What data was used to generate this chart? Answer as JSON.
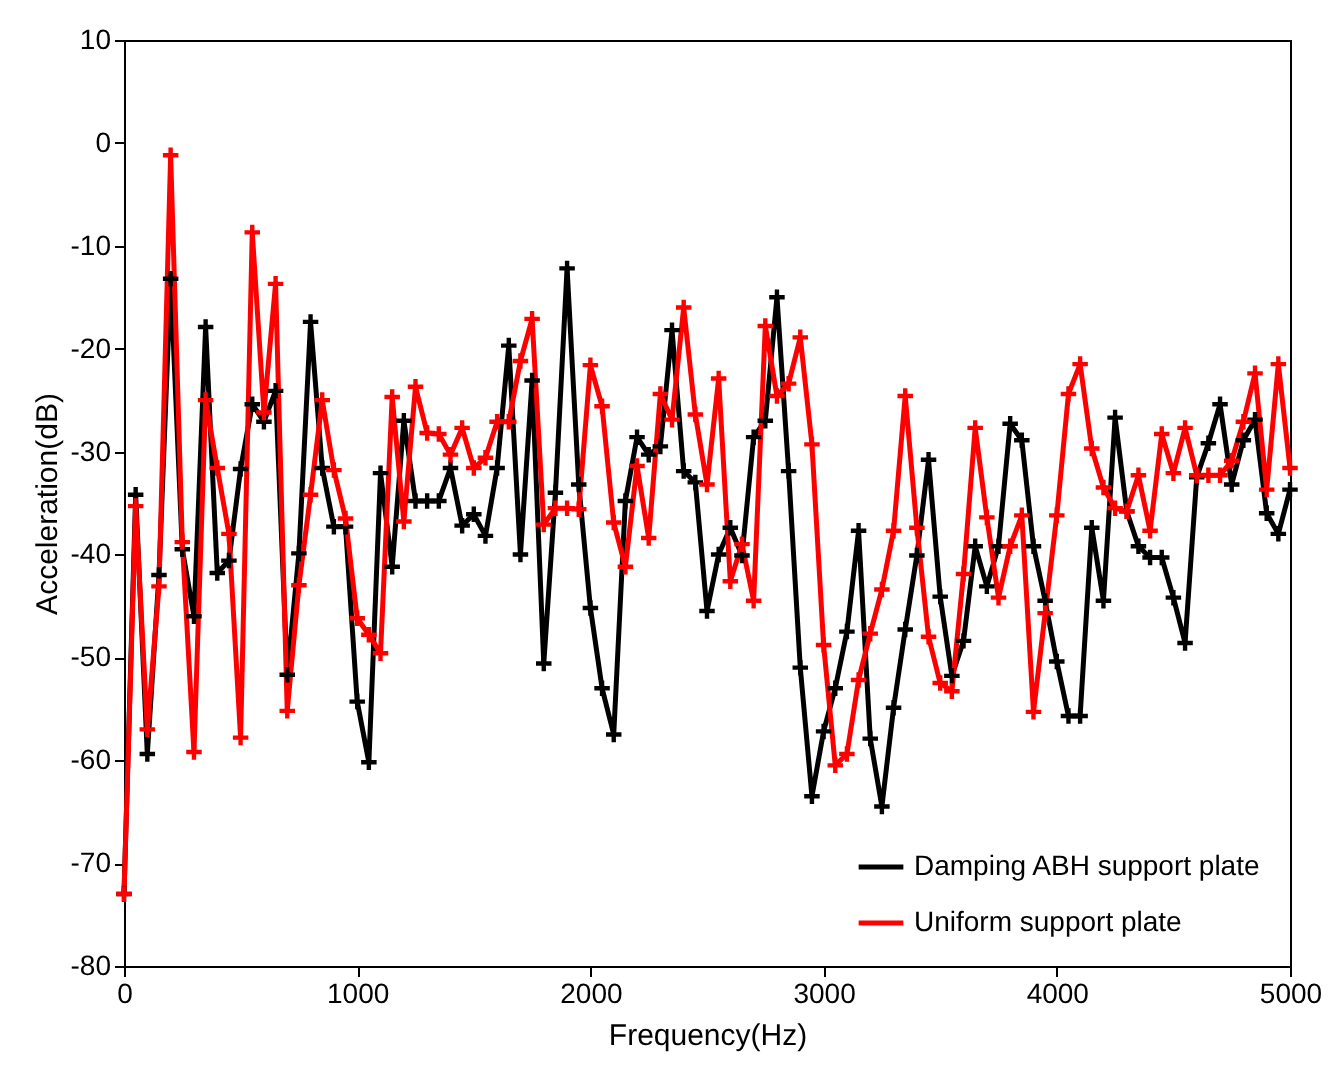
{
  "chart_data": {
    "type": "line",
    "xlabel": "Frequency(Hz)",
    "ylabel": "Acceleration(dB)",
    "x": [
      0,
      50,
      100,
      150,
      200,
      250,
      300,
      350,
      400,
      450,
      500,
      550,
      600,
      650,
      700,
      750,
      800,
      850,
      900,
      950,
      1000,
      1050,
      1100,
      1150,
      1200,
      1250,
      1300,
      1350,
      1400,
      1450,
      1500,
      1550,
      1600,
      1650,
      1700,
      1750,
      1800,
      1850,
      1900,
      1950,
      2000,
      2050,
      2100,
      2150,
      2200,
      2250,
      2300,
      2350,
      2400,
      2450,
      2500,
      2550,
      2600,
      2650,
      2700,
      2750,
      2800,
      2850,
      2900,
      2950,
      3000,
      3050,
      3100,
      3150,
      3200,
      3250,
      3300,
      3350,
      3400,
      3450,
      3500,
      3550,
      3600,
      3650,
      3700,
      3750,
      3800,
      3850,
      3900,
      3950,
      4000,
      4050,
      4100,
      4150,
      4200,
      4250,
      4300,
      4350,
      4400,
      4450,
      4500,
      4550,
      4600,
      4650,
      4700,
      4750,
      4800,
      4850,
      4900,
      4950,
      5000
    ],
    "xlim": [
      0,
      5000
    ],
    "xticks": [
      0,
      1000,
      2000,
      3000,
      4000,
      5000
    ],
    "ylim": [
      -80,
      10
    ],
    "yticks": [
      -80,
      -70,
      -60,
      -50,
      -40,
      -30,
      -20,
      -10,
      0,
      10
    ],
    "legend": "bottom right",
    "grid": false,
    "marker": "cross",
    "line_style": "solid",
    "series": [
      {
        "name": "Damping ABH support plate",
        "color": "#000000",
        "values": [
          -73,
          -34.2,
          -59.4,
          -42,
          -13.2,
          -39.5,
          -46,
          -17.9,
          -41.8,
          -40.6,
          -31.7,
          -25.4,
          -27.1,
          -24.1,
          -51.7,
          -39.9,
          -17.4,
          -31.6,
          -37.3,
          -37.3,
          -54.3,
          -60.2,
          -32.1,
          -41.2,
          -27,
          -34.8,
          -34.8,
          -34.8,
          -31.6,
          -37.2,
          -36.1,
          -38.2,
          -31.6,
          -19.7,
          -40,
          -23.1,
          -50.6,
          -34,
          -12.2,
          -33.2,
          -45.2,
          -53,
          -57.5,
          -34.8,
          -28.6,
          -30.3,
          -29.5,
          -18.2,
          -31.9,
          -33,
          -45.5,
          -40,
          -37.4,
          -40.1,
          -28.6,
          -27,
          -15,
          -31.9,
          -51,
          -63.5,
          -57.2,
          -53,
          -47.5,
          -37.7,
          -57.9,
          -64.5,
          -54.9,
          -47.3,
          -40.1,
          -30.8,
          -44.1,
          -51.8,
          -48.4,
          -39.2,
          -43.1,
          -39.2,
          -27.3,
          -28.9,
          -39.2,
          -44.5,
          -50.4,
          -55.7,
          -55.7,
          -37.4,
          -44.5,
          -26.7,
          -35.8,
          -39.2,
          -40.3,
          -40.3,
          -44.2,
          -48.6,
          -32.5,
          -29.2,
          -25.4,
          -33.2,
          -28.9,
          -26.9,
          -36,
          -38,
          -33.7
        ]
      },
      {
        "name": "Uniform support plate",
        "color": "#ff0000",
        "values": [
          -73,
          -35.3,
          -57,
          -43.1,
          -1.2,
          -38.8,
          -59.2,
          -25,
          -31.6,
          -38,
          -57.8,
          -8.7,
          -26.2,
          -13.7,
          -55.2,
          -43,
          -34.2,
          -25,
          -31.8,
          -36.5,
          -46.2,
          -47.8,
          -49.6,
          -24.7,
          -36.8,
          -23.7,
          -28.2,
          -28.3,
          -30.3,
          -27.7,
          -31.6,
          -30.6,
          -27.1,
          -27.1,
          -21.2,
          -17.1,
          -37.1,
          -35.5,
          -35.5,
          -35.6,
          -21.6,
          -25.6,
          -36.9,
          -41.2,
          -31.4,
          -38.4,
          -24.4,
          -26.9,
          -16,
          -26.4,
          -33.2,
          -22.9,
          -42.6,
          -39,
          -44.5,
          -17.8,
          -24.6,
          -23.4,
          -18.9,
          -29.3,
          -48.8,
          -60.5,
          -59.4,
          -52.2,
          -47.7,
          -43.4,
          -37.7,
          -24.6,
          -37.4,
          -48,
          -52.5,
          -53.3,
          -41.9,
          -27.7,
          -36.4,
          -44.2,
          -39.2,
          -36.2,
          -55.3,
          -45.7,
          -36.2,
          -24.4,
          -21.5,
          -29.7,
          -33.5,
          -35.5,
          -35.8,
          -32.3,
          -37.7,
          -28.3,
          -32.1,
          -27.7,
          -32.3,
          -32.3,
          -32.3,
          -30.9,
          -27.1,
          -22.4,
          -33.7,
          -21.5,
          -31.6
        ]
      }
    ]
  }
}
